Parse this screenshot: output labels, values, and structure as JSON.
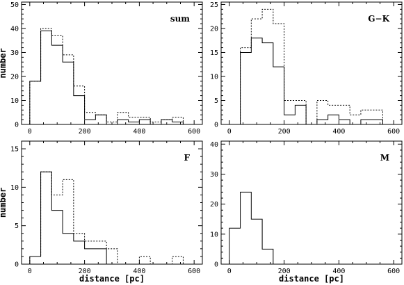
{
  "chart_data": {
    "type": "histogram",
    "bin_width": 40,
    "xlim": [
      -30,
      630
    ],
    "x_ticks": [
      0,
      200,
      400,
      600
    ],
    "panels": [
      {
        "label": "sum",
        "ylim": [
          0,
          51
        ],
        "y_ticks": [
          0,
          10,
          20,
          30,
          40,
          50
        ],
        "ylabel": "number",
        "xlabel": "",
        "series": [
          {
            "style": "solid",
            "bin_starts": [
              0,
              40,
              80,
              120,
              160,
              200,
              240,
              280,
              320,
              360,
              400,
              440,
              480,
              520,
              560
            ],
            "counts": [
              18,
              39,
              33,
              26,
              12,
              2,
              4,
              0,
              2,
              1,
              2,
              0,
              2,
              1,
              0
            ]
          },
          {
            "style": "dotted",
            "bin_starts": [
              0,
              40,
              80,
              120,
              160,
              200,
              240,
              280,
              320,
              360,
              400,
              440,
              480,
              520,
              560
            ],
            "counts": [
              18,
              40,
              37,
              29,
              16,
              5,
              4,
              1,
              5,
              3,
              3,
              1,
              2,
              3,
              0
            ]
          }
        ]
      },
      {
        "label": "G−K",
        "ylim": [
          0,
          25.5
        ],
        "y_ticks": [
          0,
          5,
          10,
          15,
          20,
          25
        ],
        "ylabel": "",
        "xlabel": "",
        "series": [
          {
            "style": "solid",
            "bin_starts": [
              0,
              40,
              80,
              120,
              160,
              200,
              240,
              280,
              320,
              360,
              400,
              440,
              480,
              520,
              560
            ],
            "counts": [
              0,
              15,
              18,
              17,
              12,
              2,
              4,
              0,
              1,
              2,
              1,
              0,
              1,
              1,
              0
            ]
          },
          {
            "style": "dotted",
            "bin_starts": [
              0,
              40,
              80,
              120,
              160,
              200,
              240,
              280,
              320,
              360,
              400,
              440,
              480,
              520,
              560
            ],
            "counts": [
              0,
              16,
              22,
              24,
              21,
              5,
              5,
              0,
              5,
              4,
              4,
              2,
              3,
              3,
              0
            ]
          }
        ]
      },
      {
        "label": "F",
        "ylim": [
          0,
          16
        ],
        "y_ticks": [
          0,
          5,
          10,
          15
        ],
        "ylabel": "number",
        "xlabel": "distance [pc]",
        "series": [
          {
            "style": "solid",
            "bin_starts": [
              0,
              40,
              80,
              120,
              160,
              200,
              240,
              280,
              320,
              360,
              400,
              440,
              480,
              520,
              560
            ],
            "counts": [
              1,
              12,
              7,
              4,
              3,
              2,
              2,
              0,
              0,
              0,
              0,
              0,
              0,
              0,
              0
            ]
          },
          {
            "style": "dotted",
            "bin_starts": [
              0,
              40,
              80,
              120,
              160,
              200,
              240,
              280,
              320,
              360,
              400,
              440,
              480,
              520,
              560
            ],
            "counts": [
              1,
              12,
              9,
              11,
              4,
              3,
              3,
              2,
              0,
              0,
              1,
              0,
              0,
              1,
              0
            ]
          }
        ]
      },
      {
        "label": "M",
        "ylim": [
          0,
          41
        ],
        "y_ticks": [
          0,
          10,
          20,
          30,
          40
        ],
        "ylabel": "",
        "xlabel": "distance [pc]",
        "series": [
          {
            "style": "solid",
            "bin_starts": [
              0,
              40,
              80,
              120
            ],
            "counts": [
              12,
              24,
              15,
              5
            ]
          }
        ]
      }
    ]
  }
}
